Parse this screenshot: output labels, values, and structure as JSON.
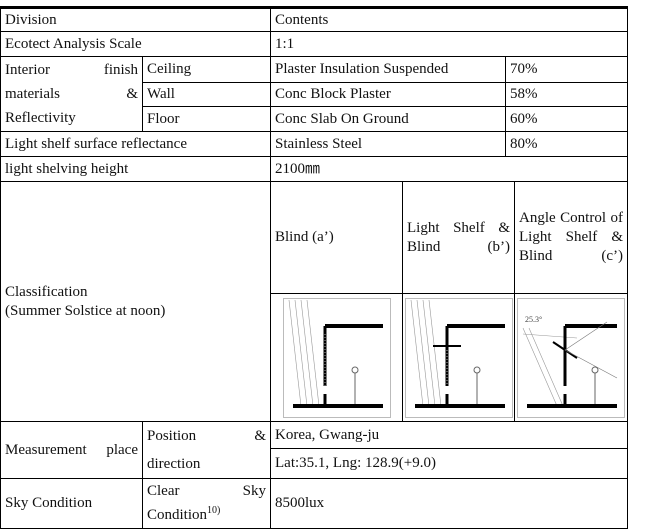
{
  "table": {
    "header": [
      "Division",
      "Contents"
    ],
    "rows": [
      [
        "Ecotect Analysis Scale",
        "1:1"
      ],
      [
        "Interior finish materials & Reflectivity",
        "Ceiling",
        "Plaster Insulation Suspended",
        "70%"
      ],
      [
        "Wall",
        "Conc Block Plaster",
        "58%"
      ],
      [
        "Floor",
        "Conc Slab On Ground",
        "60%"
      ],
      [
        "Light shelf surface reflectance",
        "Stainless Steel",
        "80%"
      ],
      [
        "light shelving height",
        "2100㎜"
      ],
      [
        "Classification",
        "(Summer Solstice at noon)",
        "Blind (a’)",
        "Light Shelf & Blind (b’)",
        "Angle Control of Light Shelf & Blind (c’)"
      ],
      [
        "Measurement place",
        "Position & direction",
        "Korea, Gwang-ju"
      ],
      [
        "Lat:35.1, Lng: 128.9(+9.0)"
      ],
      [
        "Sky Condition",
        "Clear Sky Condition",
        "10)",
        "8500lux"
      ]
    ],
    "diagram_label": "25.3°"
  }
}
